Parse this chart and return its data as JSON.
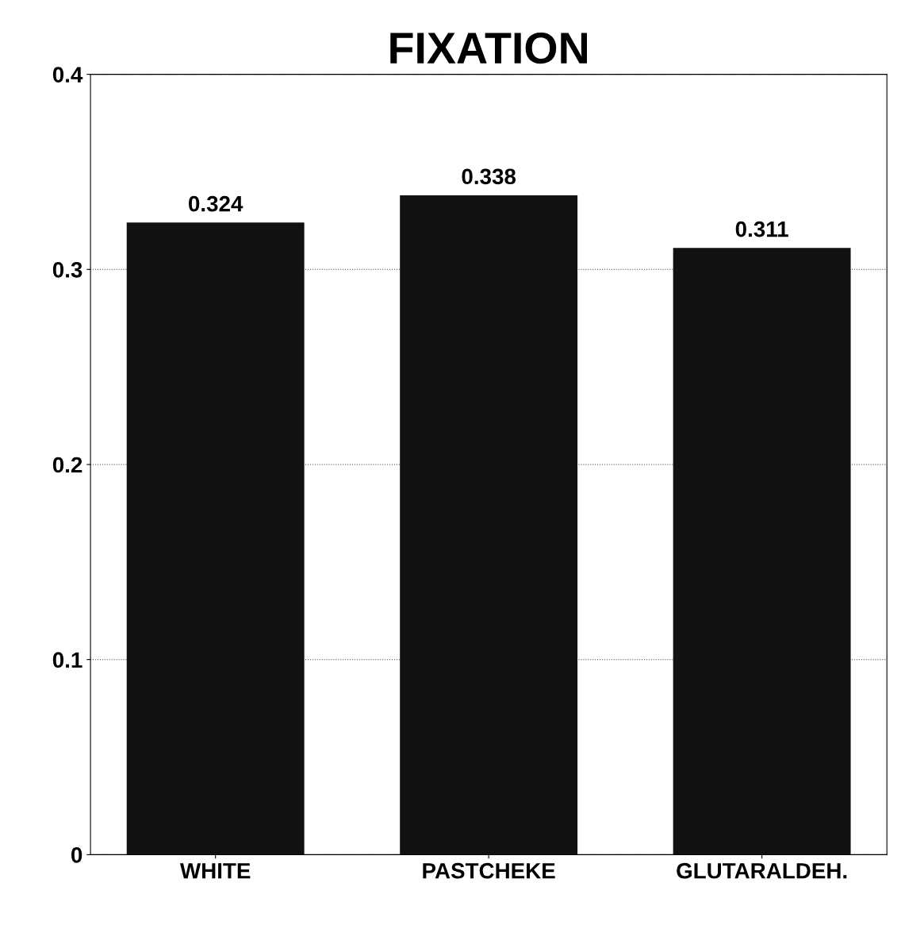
{
  "chart_data": {
    "type": "bar",
    "title": "FIXATION",
    "categories": [
      "WHITE",
      "PASTCHEKE",
      "GLUTARALDEH."
    ],
    "values": [
      0.324,
      0.338,
      0.311
    ],
    "color": "#111111",
    "ylim": [
      0,
      0.4
    ],
    "yticks": [
      0,
      0.1,
      0.2,
      0.3,
      0.4
    ],
    "grid": "y",
    "data_labels": true
  }
}
